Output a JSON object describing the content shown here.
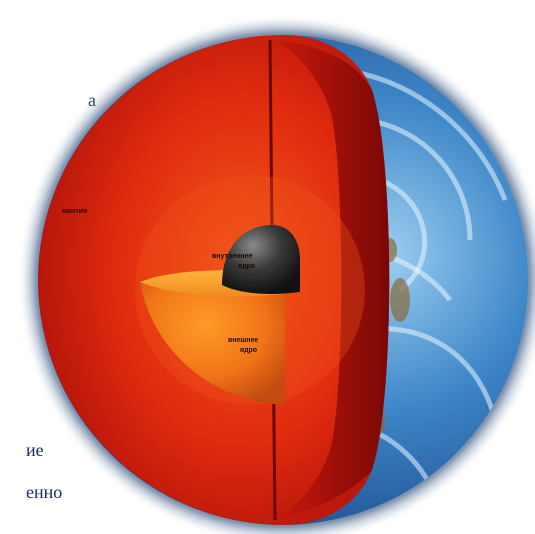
{
  "diagram": {
    "labels": {
      "mantle": "мантия",
      "inner_core_line1": "внутреннее",
      "inner_core_line2": "ядро",
      "outer_core_line1": "внешнее",
      "outer_core_line2": "ядро"
    }
  },
  "side_text": {
    "top_fragment": "а",
    "bottom_fragment_1": "ие",
    "bottom_fragment_2": "енно"
  }
}
